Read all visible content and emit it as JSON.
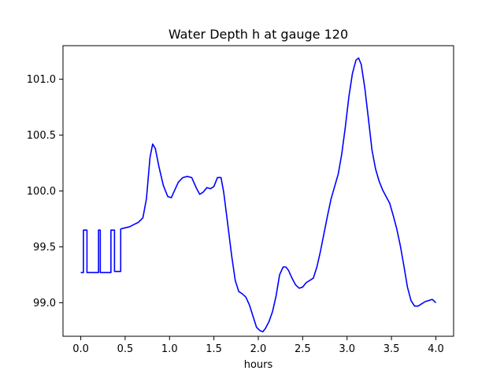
{
  "chart_data": {
    "type": "line",
    "title": "Water Depth h at gauge 120",
    "xlabel": "hours",
    "ylabel": "",
    "xlim": [
      -0.2,
      4.2
    ],
    "ylim": [
      98.7,
      101.3
    ],
    "grid": false,
    "x_ticks": [
      0.0,
      0.5,
      1.0,
      1.5,
      2.0,
      2.5,
      3.0,
      3.5,
      4.0
    ],
    "x_tick_labels": [
      "0.0",
      "0.5",
      "1.0",
      "1.5",
      "2.0",
      "2.5",
      "3.0",
      "3.5",
      "4.0"
    ],
    "y_ticks": [
      99.0,
      99.5,
      100.0,
      100.5,
      101.0
    ],
    "y_tick_labels": [
      "99.0",
      "99.5",
      "100.0",
      "100.5",
      "101.0"
    ],
    "series": [
      {
        "color": "#0000ff",
        "x": [
          0.0,
          0.03,
          0.03,
          0.07,
          0.07,
          0.2,
          0.2,
          0.22,
          0.22,
          0.34,
          0.34,
          0.38,
          0.38,
          0.45,
          0.45,
          0.5,
          0.55,
          0.6,
          0.65,
          0.7,
          0.74,
          0.78,
          0.81,
          0.84,
          0.88,
          0.93,
          0.98,
          1.02,
          1.06,
          1.1,
          1.15,
          1.2,
          1.25,
          1.3,
          1.34,
          1.38,
          1.42,
          1.46,
          1.5,
          1.54,
          1.58,
          1.61,
          1.65,
          1.7,
          1.74,
          1.78,
          1.82,
          1.86,
          1.9,
          1.94,
          1.98,
          2.02,
          2.05,
          2.08,
          2.12,
          2.16,
          2.2,
          2.24,
          2.28,
          2.31,
          2.34,
          2.38,
          2.42,
          2.46,
          2.5,
          2.54,
          2.58,
          2.62,
          2.66,
          2.7,
          2.74,
          2.78,
          2.82,
          2.86,
          2.9,
          2.94,
          2.98,
          3.02,
          3.06,
          3.1,
          3.13,
          3.16,
          3.2,
          3.24,
          3.28,
          3.32,
          3.36,
          3.4,
          3.44,
          3.48,
          3.52,
          3.56,
          3.6,
          3.64,
          3.68,
          3.72,
          3.76,
          3.8,
          3.84,
          3.88,
          3.92,
          3.96,
          4.0
        ],
        "y": [
          99.27,
          99.27,
          99.65,
          99.65,
          99.27,
          99.27,
          99.65,
          99.65,
          99.27,
          99.27,
          99.65,
          99.65,
          99.28,
          99.28,
          99.66,
          99.67,
          99.68,
          99.7,
          99.72,
          99.76,
          99.93,
          100.3,
          100.42,
          100.38,
          100.22,
          100.05,
          99.95,
          99.94,
          100.01,
          100.08,
          100.12,
          100.13,
          100.12,
          100.03,
          99.97,
          99.99,
          100.03,
          100.02,
          100.04,
          100.12,
          100.12,
          99.99,
          99.74,
          99.42,
          99.2,
          99.1,
          99.08,
          99.05,
          98.98,
          98.88,
          98.78,
          98.75,
          98.74,
          98.77,
          98.83,
          98.92,
          99.06,
          99.25,
          99.32,
          99.32,
          99.29,
          99.22,
          99.16,
          99.13,
          99.14,
          99.18,
          99.2,
          99.22,
          99.32,
          99.46,
          99.62,
          99.78,
          99.93,
          100.04,
          100.15,
          100.33,
          100.57,
          100.84,
          101.05,
          101.17,
          101.19,
          101.13,
          100.92,
          100.65,
          100.37,
          100.2,
          100.09,
          100.01,
          99.95,
          99.89,
          99.78,
          99.66,
          99.51,
          99.33,
          99.14,
          99.02,
          98.97,
          98.97,
          98.99,
          99.01,
          99.02,
          99.03,
          99.0
        ]
      }
    ]
  }
}
